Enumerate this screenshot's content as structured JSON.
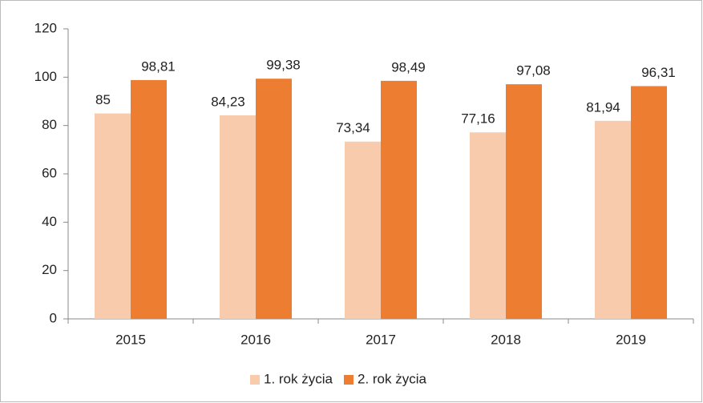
{
  "chart_data": {
    "type": "bar",
    "categories": [
      "2015",
      "2016",
      "2017",
      "2018",
      "2019"
    ],
    "series": [
      {
        "name": "1. rok życia",
        "color": "#f8cbad",
        "values": [
          85,
          84.23,
          73.34,
          77.16,
          81.94
        ],
        "value_labels": [
          "85",
          "84,23",
          "73,34",
          "77,16",
          "81,94"
        ]
      },
      {
        "name": "2. rok życia",
        "color": "#ed7d31",
        "values": [
          98.81,
          99.38,
          98.49,
          97.08,
          96.31
        ],
        "value_labels": [
          "98,81",
          "99,38",
          "98,49",
          "97,08",
          "96,31"
        ]
      }
    ],
    "ylim": [
      0,
      120
    ],
    "yticks": [
      0,
      20,
      40,
      60,
      80,
      100,
      120
    ],
    "grid": false,
    "legend": "bottom"
  }
}
